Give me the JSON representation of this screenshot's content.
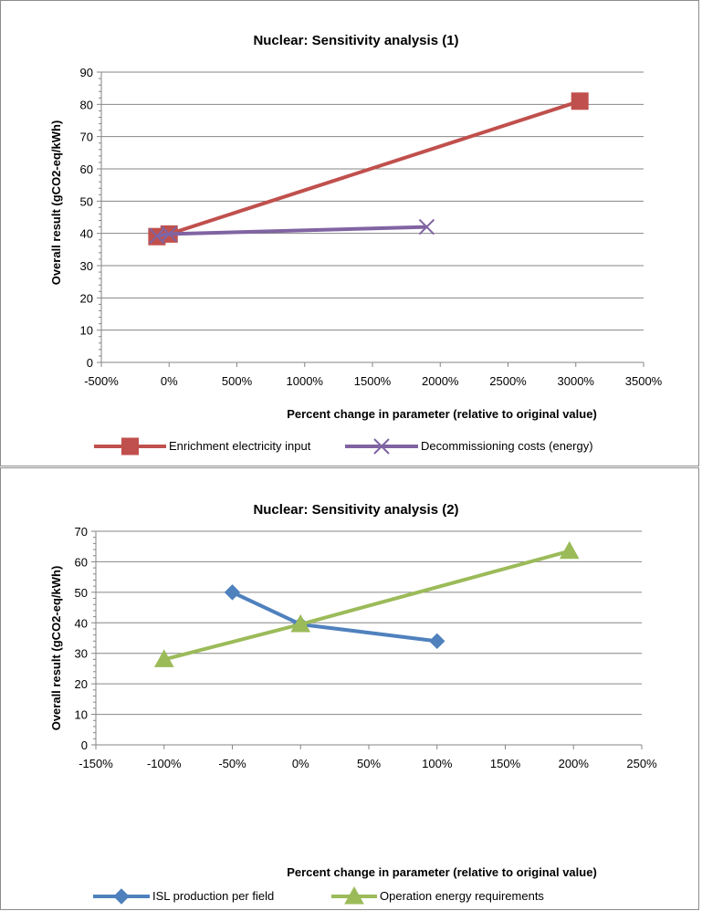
{
  "chart_data": [
    {
      "type": "line",
      "title": "Nuclear: Sensitivity analysis (1)",
      "xlabel": "Percent change in parameter (relative to original value)",
      "ylabel": "Overall result (gCO2-eq/kWh)",
      "xlim": [
        -500,
        3500
      ],
      "ylim": [
        0,
        90
      ],
      "x_ticks": [
        -500,
        0,
        500,
        1000,
        1500,
        2000,
        2500,
        3000,
        3500
      ],
      "x_tick_labels": [
        "-500%",
        "0%",
        "500%",
        "1000%",
        "1500%",
        "2000%",
        "2500%",
        "3000%",
        "3500%"
      ],
      "y_ticks": [
        0,
        10,
        20,
        30,
        40,
        50,
        60,
        70,
        80,
        90
      ],
      "y_tick_labels": [
        "0",
        "10",
        "20",
        "30",
        "40",
        "50",
        "60",
        "70",
        "80",
        "90"
      ],
      "grid": "horizontal",
      "legend_position": "bottom",
      "series": [
        {
          "name": "Enrichment electricity input",
          "color": "#c0504d",
          "marker": "square",
          "points": [
            [
              -90,
              39
            ],
            [
              0,
              39.8
            ],
            [
              3030,
              81
            ]
          ]
        },
        {
          "name": "Decommissioning costs (energy)",
          "color": "#8064a2",
          "marker": "x",
          "points": [
            [
              -90,
              39.2
            ],
            [
              0,
              39.8
            ],
            [
              1900,
              42
            ]
          ]
        }
      ]
    },
    {
      "type": "line",
      "title": "Nuclear: Sensitivity analysis (2)",
      "xlabel": "Percent change in parameter (relative to original value)",
      "ylabel": "Overall result (gCO2-eq/kWh)",
      "xlim": [
        -150,
        250
      ],
      "ylim": [
        0,
        70
      ],
      "x_ticks": [
        -150,
        -100,
        -50,
        0,
        50,
        100,
        150,
        200,
        250
      ],
      "x_tick_labels": [
        "-150%",
        "-100%",
        "-50%",
        "0%",
        "50%",
        "100%",
        "150%",
        "200%",
        "250%"
      ],
      "y_ticks": [
        0,
        10,
        20,
        30,
        40,
        50,
        60,
        70
      ],
      "y_tick_labels": [
        "0",
        "10",
        "20",
        "30",
        "40",
        "50",
        "60",
        "70"
      ],
      "grid": "horizontal",
      "legend_position": "bottom",
      "series": [
        {
          "name": "ISL production per field",
          "color": "#4f81bd",
          "marker": "diamond",
          "points": [
            [
              -50,
              50
            ],
            [
              0,
              39.5
            ],
            [
              100,
              34
            ]
          ]
        },
        {
          "name": "Operation energy requirements",
          "color": "#9bbb59",
          "marker": "triangle",
          "points": [
            [
              -100,
              28
            ],
            [
              0,
              39.5
            ],
            [
              197,
              63.5
            ]
          ]
        }
      ]
    }
  ]
}
